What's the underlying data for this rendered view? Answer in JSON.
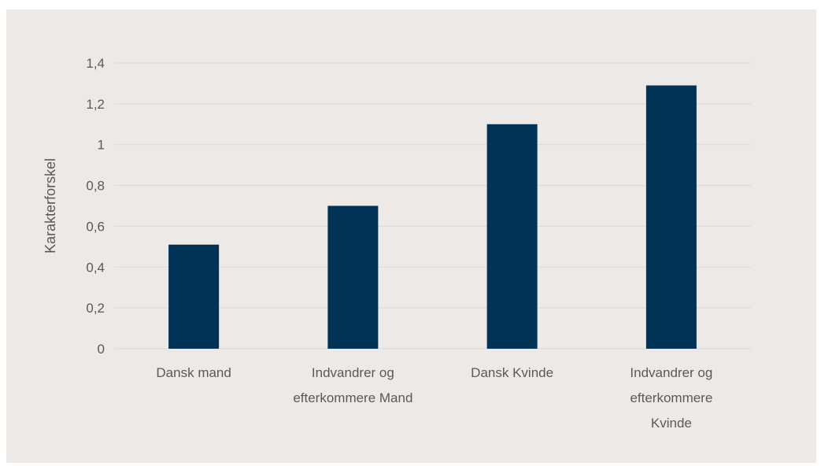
{
  "chart_data": {
    "type": "bar",
    "categories": [
      [
        "Dansk mand"
      ],
      [
        "Indvandrer og",
        "efterkommere Mand"
      ],
      [
        "Dansk Kvinde"
      ],
      [
        "Indvandrer og",
        "efterkommere",
        "Kvinde"
      ]
    ],
    "values": [
      0.51,
      0.7,
      1.1,
      1.29
    ],
    "title": "",
    "xlabel": "",
    "ylabel": "Karakterforskel",
    "ylim": [
      0,
      1.4
    ],
    "yticks": [
      "0",
      "0,2",
      "0,4",
      "0,6",
      "0,8",
      "1",
      "1,2",
      "1,4"
    ],
    "grid": true,
    "colors": {
      "bar": "#003356",
      "background": "#ede9e6",
      "grid": "#d9d9d9",
      "text": "#595959"
    }
  }
}
